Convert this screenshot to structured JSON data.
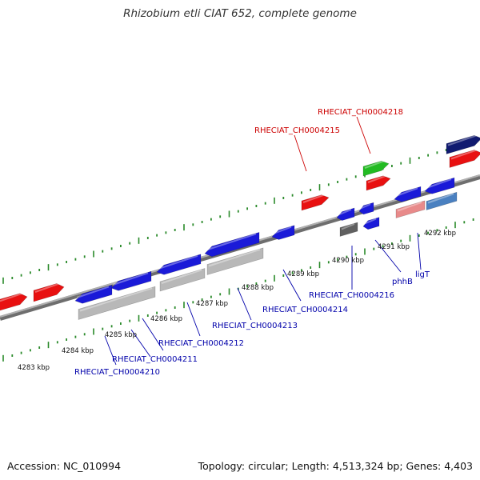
{
  "title": "Rhizobium etli CIAT 652, complete genome",
  "footer": {
    "accession": "Accession: NC_010994",
    "summary": "Topology: circular; Length: 4,513,324 bp; Genes: 4,403"
  },
  "colors": {
    "backbone": "#8a8a8a",
    "forward_gene": "#e81010",
    "forward_gene_highlight": "#22bb22",
    "reverse_gene": "#1a1ad8",
    "reverse_gene_pale": "#e88a8a",
    "rna_like": "#b8b8b8",
    "tick": "#2a8a2a",
    "label_forward": "#cc0000",
    "label_reverse": "#0000aa"
  },
  "scale_labels": [
    "4283 kbp",
    "4284 kbp",
    "4285 kbp",
    "4286 kbp",
    "4287 kbp",
    "4288 kbp",
    "4289 kbp",
    "4290 kbp",
    "4291 kbp",
    "4292 kbp"
  ],
  "gene_labels": {
    "forward": [
      "RHECIAT_CH0004215",
      "RHECIAT_CH0004218"
    ],
    "reverse": [
      "RHECIAT_CH0004210",
      "RHECIAT_CH0004211",
      "RHECIAT_CH0004212",
      "RHECIAT_CH0004213",
      "RHECIAT_CH0004214",
      "RHECIAT_CH0004216",
      "phhB",
      "ligT"
    ]
  }
}
